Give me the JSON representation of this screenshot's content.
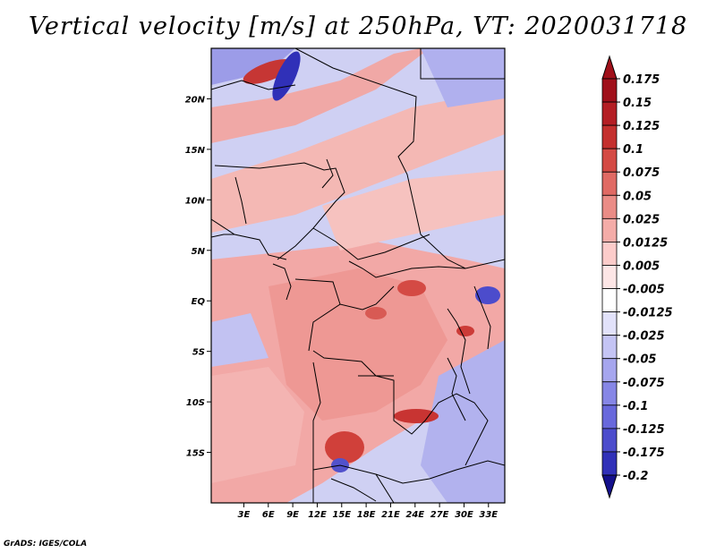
{
  "title": "Vertical velocity [m/s] at 250hPa, VT: 2020031718",
  "credit": "GrADS: IGES/COLA",
  "chart_data": {
    "type": "heatmap",
    "title": "Vertical velocity [m/s] at 250hPa, VT: 2020031718",
    "variable": "Vertical velocity",
    "units": "m/s",
    "level": "250hPa",
    "valid_time": "2020031718",
    "x_range_deg": [
      -1,
      35
    ],
    "y_range_deg": [
      -20,
      25
    ],
    "x_ticks": [
      {
        "value": 3,
        "label": "3E"
      },
      {
        "value": 6,
        "label": "6E"
      },
      {
        "value": 9,
        "label": "9E"
      },
      {
        "value": 12,
        "label": "12E"
      },
      {
        "value": 15,
        "label": "15E"
      },
      {
        "value": 18,
        "label": "18E"
      },
      {
        "value": 21,
        "label": "21E"
      },
      {
        "value": 24,
        "label": "24E"
      },
      {
        "value": 27,
        "label": "27E"
      },
      {
        "value": 30,
        "label": "30E"
      },
      {
        "value": 33,
        "label": "33E"
      }
    ],
    "y_ticks": [
      {
        "value": 20,
        "label": "20N"
      },
      {
        "value": 15,
        "label": "15N"
      },
      {
        "value": 10,
        "label": "10N"
      },
      {
        "value": 5,
        "label": "5N"
      },
      {
        "value": 0,
        "label": "EQ"
      },
      {
        "value": -5,
        "label": "5S"
      },
      {
        "value": -10,
        "label": "10S"
      },
      {
        "value": -15,
        "label": "15S"
      }
    ],
    "colorbar": [
      {
        "label": "0.175",
        "color": "#a0101a"
      },
      {
        "label": "0.15",
        "color": "#b41e24"
      },
      {
        "label": "0.125",
        "color": "#c4302e"
      },
      {
        "label": "0.1",
        "color": "#d44a44"
      },
      {
        "label": "0.075",
        "color": "#e06a64"
      },
      {
        "label": "0.05",
        "color": "#ea8c86"
      },
      {
        "label": "0.025",
        "color": "#f4aca8"
      },
      {
        "label": "0.0125",
        "color": "#fcccca"
      },
      {
        "label": "0.005",
        "color": "#fde6e6"
      },
      {
        "label": "-0.005",
        "color": "#ffffff"
      },
      {
        "label": "-0.0125",
        "color": "#e2e2fa"
      },
      {
        "label": "-0.025",
        "color": "#c4c4f4"
      },
      {
        "label": "-0.05",
        "color": "#a6a6ee"
      },
      {
        "label": "-0.075",
        "color": "#8686e6"
      },
      {
        "label": "-0.1",
        "color": "#6868dc"
      },
      {
        "label": "-0.125",
        "color": "#4c4ccc"
      },
      {
        "label": "-0.175",
        "color": "#3030b8"
      },
      {
        "label": "-0.2",
        "color": "#2424a4"
      }
    ],
    "colorbar_bottom_color": "#14108c"
  }
}
